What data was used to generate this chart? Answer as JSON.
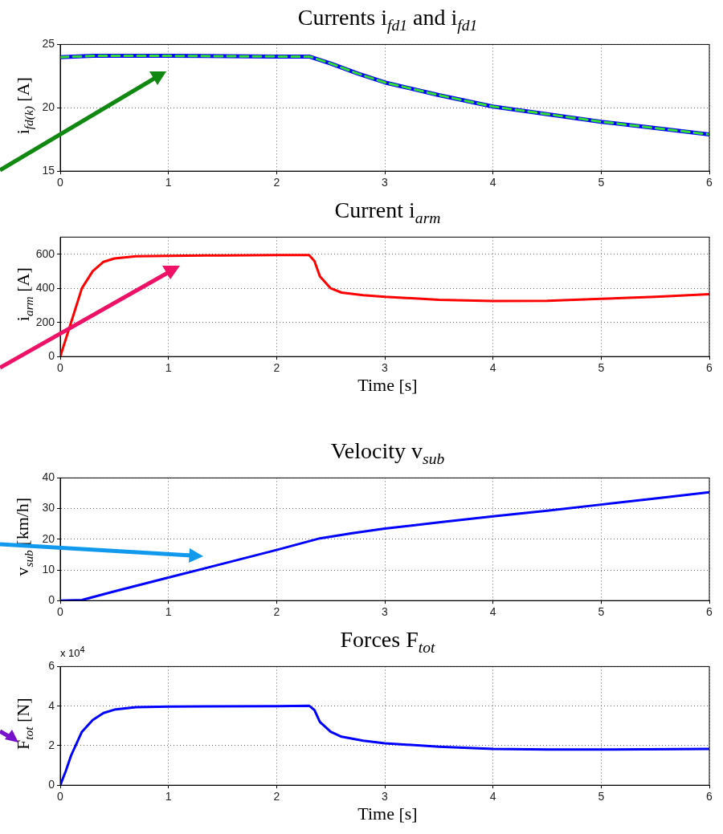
{
  "chart_data": [
    {
      "type": "line",
      "title": "Currents i$_{fd1}$ and i$_{fd1}$",
      "ylabel": "i$_{fd(k)}$ [A]",
      "x": [
        0,
        0.3,
        1,
        2,
        2.3,
        2.5,
        2.75,
        3,
        3.5,
        4,
        4.5,
        5,
        5.5,
        6
      ],
      "series": [
        {
          "color": "#0000ff",
          "line_style": "solid",
          "values": [
            24.0,
            24.1,
            24.1,
            24.05,
            24.05,
            23.5,
            22.7,
            22.0,
            21.0,
            20.1,
            19.5,
            18.9,
            18.4,
            17.9
          ]
        },
        {
          "color": "#33dd33",
          "line_style": "dashed",
          "values": [
            24.0,
            24.1,
            24.1,
            24.05,
            24.05,
            23.5,
            22.7,
            22.0,
            21.0,
            20.1,
            19.5,
            18.9,
            18.4,
            17.9
          ]
        }
      ],
      "xlim": [
        0,
        6
      ],
      "xticks": [
        0,
        1,
        2,
        3,
        4,
        5,
        6
      ],
      "ylim": [
        15,
        25
      ],
      "yticks": [
        15,
        20,
        25
      ],
      "grid": true,
      "marker": "none"
    },
    {
      "type": "line",
      "title": "Current i$_{arm}$",
      "ylabel": "i$_{arm}$ [A]",
      "xlabel": "Time [s]",
      "x": [
        0,
        0.05,
        0.1,
        0.15,
        0.2,
        0.3,
        0.4,
        0.5,
        0.7,
        1,
        1.5,
        2,
        2.3,
        2.35,
        2.4,
        2.5,
        2.6,
        2.8,
        3,
        3.5,
        4,
        4.5,
        5,
        5.5,
        6
      ],
      "series": [
        {
          "color": "#ff0000",
          "values": [
            0,
            100,
            200,
            300,
            400,
            500,
            555,
            575,
            588,
            590,
            593,
            595,
            595,
            560,
            470,
            400,
            375,
            360,
            350,
            333,
            325,
            327,
            338,
            350,
            365
          ]
        }
      ],
      "xlim": [
        0,
        6
      ],
      "xticks": [
        0,
        1,
        2,
        3,
        4,
        5,
        6
      ],
      "ylim": [
        0,
        700
      ],
      "yticks": [
        0,
        200,
        400,
        600
      ],
      "grid": true,
      "marker": "none"
    },
    {
      "type": "line",
      "title": "Velocity v$_{sub}$",
      "ylabel": "v$_{sub}$ [km/h]",
      "x": [
        0,
        0.2,
        0.5,
        1,
        1.5,
        2,
        2.4,
        2.7,
        3,
        3.5,
        4,
        4.5,
        5,
        5.5,
        6
      ],
      "series": [
        {
          "color": "#0000ff",
          "values": [
            0,
            0.2,
            3,
            7.5,
            12,
            16.5,
            20.3,
            22,
            23.5,
            25.5,
            27.5,
            29.3,
            31.3,
            33.3,
            35.3
          ]
        }
      ],
      "xlim": [
        0,
        6
      ],
      "xticks": [
        0,
        1,
        2,
        3,
        4,
        5,
        6
      ],
      "ylim": [
        0,
        40
      ],
      "yticks": [
        0,
        10,
        20,
        30,
        40
      ],
      "grid": true,
      "marker": "none"
    },
    {
      "type": "line",
      "title": "Forces F$_{tot}$",
      "ylabel": "F$_{tot}$ [N]",
      "xlabel": "Time [s]",
      "annotations": [
        "x 10$^{4}$"
      ],
      "x": [
        0,
        0.05,
        0.1,
        0.2,
        0.3,
        0.4,
        0.5,
        0.7,
        1,
        2,
        2.3,
        2.35,
        2.4,
        2.5,
        2.6,
        2.8,
        3,
        3.5,
        4,
        4.5,
        5,
        6
      ],
      "series": [
        {
          "color": "#0000ff",
          "values": [
            0,
            0.7,
            1.5,
            2.7,
            3.3,
            3.65,
            3.82,
            3.95,
            3.98,
            4.0,
            4.02,
            3.8,
            3.2,
            2.7,
            2.45,
            2.25,
            2.12,
            1.95,
            1.83,
            1.8,
            1.8,
            1.83
          ]
        }
      ],
      "xlim": [
        0,
        6
      ],
      "xticks": [
        0,
        1,
        2,
        3,
        4,
        5,
        6
      ],
      "ylim": [
        0,
        6
      ],
      "yticks": [
        0,
        2,
        4,
        6
      ],
      "grid": true,
      "marker": "none"
    }
  ]
}
